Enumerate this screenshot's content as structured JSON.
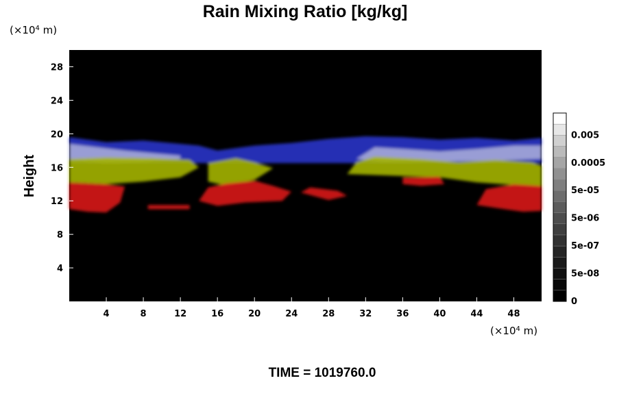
{
  "chart_data": {
    "type": "heatmap",
    "title": "Rain Mixing Ratio [kg/kg]",
    "ylabel": "Height",
    "x_unit_text": "(×10",
    "x_unit_exp": "4",
    "x_unit_tail": " m)",
    "y_unit_text": "(×10",
    "y_unit_exp": "4",
    "y_unit_tail": " m)",
    "xlim": [
      0,
      51
    ],
    "ylim": [
      0,
      30
    ],
    "x_ticks": [
      4,
      8,
      12,
      16,
      20,
      24,
      28,
      32,
      36,
      40,
      44,
      48
    ],
    "y_ticks": [
      4,
      8,
      12,
      16,
      20,
      24,
      28
    ],
    "colorbar": {
      "tick_labels": [
        "0",
        "5e-08",
        "5e-07",
        "5e-06",
        "5e-05",
        "0.0005",
        "0.005"
      ],
      "levels": 17,
      "color_low": "#000000",
      "color_high": "#ffffff"
    },
    "time_label": "TIME = 1019760.0",
    "layers": [
      {
        "color": "#2a35c8",
        "points": [
          [
            0,
            16.5
          ],
          [
            0,
            19.6
          ],
          [
            4,
            19.0
          ],
          [
            8,
            19.2
          ],
          [
            12,
            18.8
          ],
          [
            14,
            18.6
          ],
          [
            16,
            18.0
          ],
          [
            20,
            18.6
          ],
          [
            24,
            18.9
          ],
          [
            28,
            19.4
          ],
          [
            32,
            19.7
          ],
          [
            36,
            19.6
          ],
          [
            40,
            19.3
          ],
          [
            44,
            19.5
          ],
          [
            48,
            19.2
          ],
          [
            51,
            19.5
          ],
          [
            51,
            16.5
          ]
        ]
      },
      {
        "color": "#a6aad8",
        "points": [
          [
            0,
            16.8
          ],
          [
            0,
            18.8
          ],
          [
            3,
            18.4
          ],
          [
            6,
            18.0
          ],
          [
            10,
            17.6
          ],
          [
            12,
            17.4
          ],
          [
            12,
            17.0
          ],
          [
            8,
            16.6
          ],
          [
            4,
            16.5
          ]
        ]
      },
      {
        "color": "#a6aad8",
        "points": [
          [
            31,
            17.0
          ],
          [
            33,
            18.4
          ],
          [
            36,
            18.2
          ],
          [
            40,
            17.9
          ],
          [
            44,
            18.2
          ],
          [
            48,
            18.6
          ],
          [
            51,
            18.6
          ],
          [
            51,
            17.0
          ],
          [
            46,
            16.8
          ],
          [
            40,
            16.7
          ],
          [
            34,
            16.6
          ]
        ]
      },
      {
        "color": "#a4b400",
        "points": [
          [
            0,
            14.2
          ],
          [
            0,
            17.0
          ],
          [
            4,
            17.2
          ],
          [
            9,
            17.1
          ],
          [
            13,
            16.9
          ],
          [
            14,
            16.0
          ],
          [
            12,
            14.8
          ],
          [
            8,
            14.3
          ],
          [
            4,
            14.0
          ]
        ]
      },
      {
        "color": "#a4b400",
        "points": [
          [
            15,
            14.3
          ],
          [
            15,
            16.5
          ],
          [
            18,
            17.1
          ],
          [
            20,
            16.6
          ],
          [
            22,
            15.9
          ],
          [
            20,
            14.5
          ],
          [
            17,
            13.8
          ]
        ]
      },
      {
        "color": "#a4b400",
        "points": [
          [
            30,
            15.2
          ],
          [
            31,
            16.6
          ],
          [
            33,
            17.3
          ],
          [
            38,
            17.0
          ],
          [
            42,
            16.6
          ],
          [
            46,
            16.9
          ],
          [
            50,
            16.6
          ],
          [
            51,
            16.2
          ],
          [
            51,
            13.6
          ],
          [
            48,
            13.9
          ],
          [
            44,
            14.2
          ],
          [
            40,
            14.8
          ],
          [
            35,
            15.0
          ]
        ]
      },
      {
        "color": "#d81818",
        "points": [
          [
            0,
            11.0
          ],
          [
            0,
            14.2
          ],
          [
            4,
            14.0
          ],
          [
            6,
            13.7
          ],
          [
            5.5,
            11.8
          ],
          [
            4,
            10.6
          ],
          [
            2,
            10.7
          ]
        ]
      },
      {
        "color": "#d81818",
        "points": [
          [
            14,
            12.0
          ],
          [
            15,
            13.6
          ],
          [
            17,
            14.1
          ],
          [
            20,
            14.4
          ],
          [
            22,
            13.8
          ],
          [
            24,
            13.1
          ],
          [
            23,
            12.0
          ],
          [
            19,
            11.8
          ],
          [
            16,
            11.4
          ]
        ]
      },
      {
        "color": "#d81818",
        "points": [
          [
            25,
            13.0
          ],
          [
            26,
            13.6
          ],
          [
            29,
            13.2
          ],
          [
            30,
            12.6
          ],
          [
            28,
            12.1
          ]
        ]
      },
      {
        "color": "#d81818",
        "points": [
          [
            36,
            14.0
          ],
          [
            36,
            14.8
          ],
          [
            40,
            14.9
          ],
          [
            40.5,
            14.0
          ],
          [
            38,
            13.8
          ]
        ]
      },
      {
        "color": "#d81818",
        "points": [
          [
            44,
            11.5
          ],
          [
            45,
            13.4
          ],
          [
            48,
            14.0
          ],
          [
            51,
            13.8
          ],
          [
            51,
            10.8
          ],
          [
            49,
            10.7
          ],
          [
            47,
            11.0
          ]
        ]
      },
      {
        "color": "#d81818",
        "points": [
          [
            8.5,
            11.0
          ],
          [
            8.5,
            11.5
          ],
          [
            13,
            11.5
          ],
          [
            13,
            11.0
          ]
        ]
      }
    ]
  }
}
